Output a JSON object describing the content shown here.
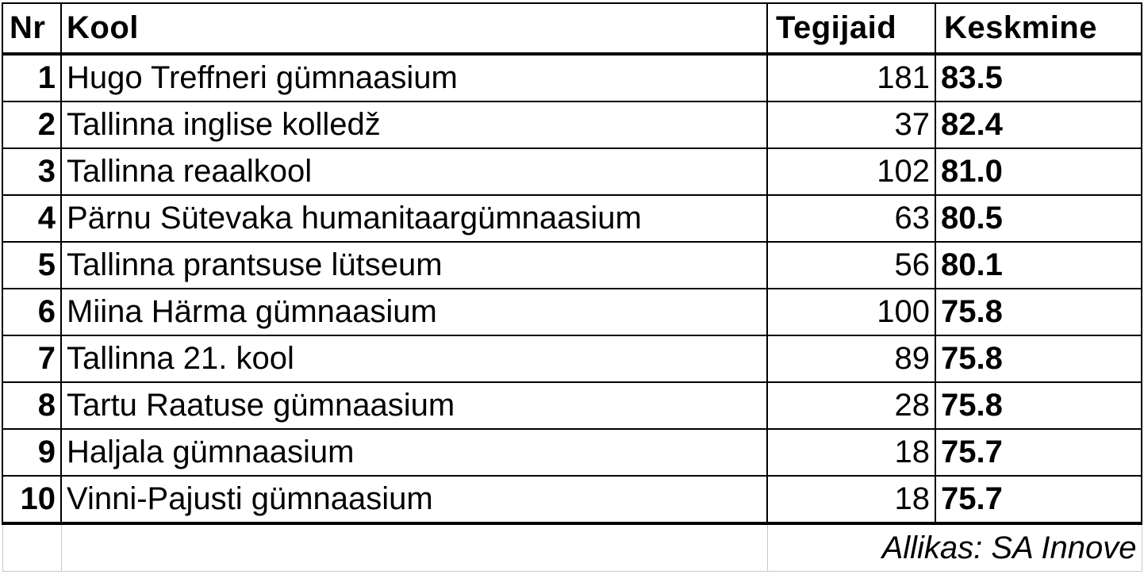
{
  "headers": {
    "nr": "Nr",
    "kool": "Kool",
    "tegijaid": "Tegijaid",
    "keskmine": "Keskmine"
  },
  "rows": [
    {
      "nr": "1",
      "kool": "Hugo Treffneri gümnaasium",
      "tegijaid": "181",
      "keskmine": "83.5"
    },
    {
      "nr": "2",
      "kool": "Tallinna inglise kolledž",
      "tegijaid": "37",
      "keskmine": "82.4"
    },
    {
      "nr": "3",
      "kool": "Tallinna reaalkool",
      "tegijaid": "102",
      "keskmine": "81.0"
    },
    {
      "nr": "4",
      "kool": "Pärnu Sütevaka humanitaargümnaasium",
      "tegijaid": "63",
      "keskmine": "80.5"
    },
    {
      "nr": "5",
      "kool": "Tallinna prantsuse lütseum",
      "tegijaid": "56",
      "keskmine": "80.1"
    },
    {
      "nr": "6",
      "kool": "Miina Härma gümnaasium",
      "tegijaid": "100",
      "keskmine": "75.8"
    },
    {
      "nr": "7",
      "kool": "Tallinna 21. kool",
      "tegijaid": "89",
      "keskmine": "75.8"
    },
    {
      "nr": "8",
      "kool": "Tartu Raatuse gümnaasium",
      "tegijaid": "28",
      "keskmine": "75.8"
    },
    {
      "nr": "9",
      "kool": "Haljala gümnaasium",
      "tegijaid": "18",
      "keskmine": "75.7"
    },
    {
      "nr": "10",
      "kool": "Vinni-Pajusti gümnaasium",
      "tegijaid": "18",
      "keskmine": "75.7"
    }
  ],
  "footer": {
    "source": "Allikas: SA Innove"
  }
}
